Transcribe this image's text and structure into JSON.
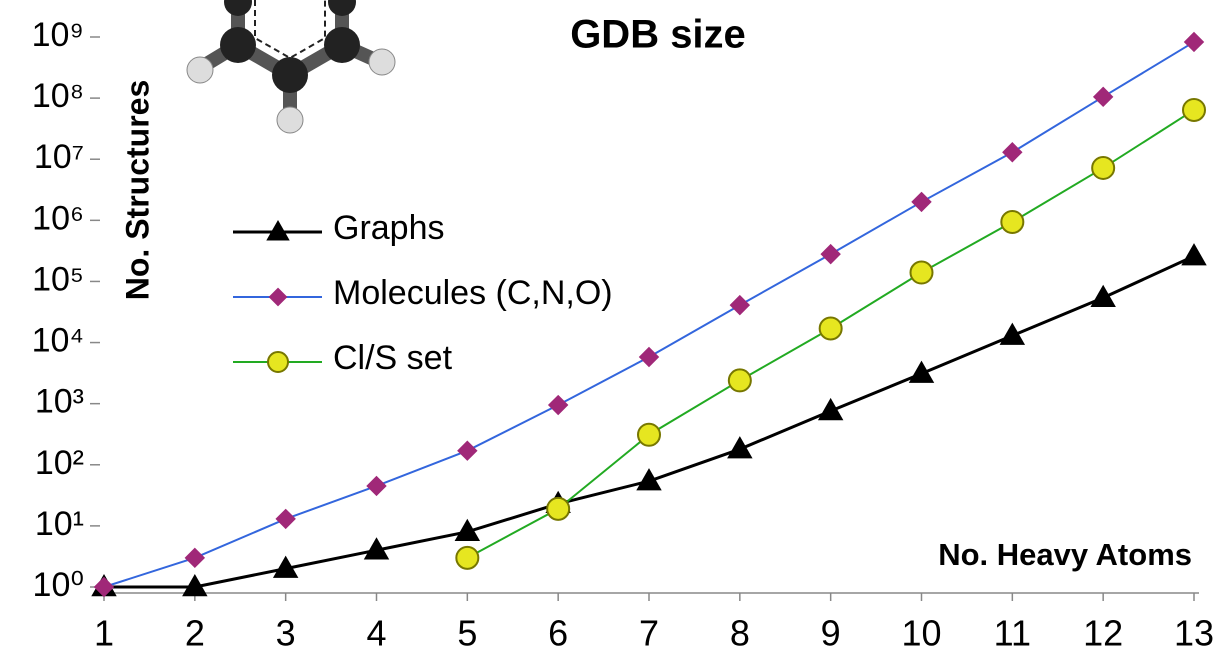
{
  "chart_data": {
    "type": "line",
    "title": "GDB size",
    "ylabel": "No. Structures",
    "xlabel": "No. Heavy Atoms",
    "x": [
      1,
      2,
      3,
      4,
      5,
      6,
      7,
      8,
      9,
      10,
      11,
      12,
      13
    ],
    "xlim": [
      1,
      13
    ],
    "xticks": [
      1,
      2,
      3,
      4,
      5,
      6,
      7,
      8,
      9,
      10,
      11,
      12,
      13
    ],
    "ylim": [
      1,
      1000000000
    ],
    "ylog": true,
    "yticks": [
      {
        "value": 1,
        "label": "10⁰"
      },
      {
        "value": 10,
        "label": "10¹"
      },
      {
        "value": 100,
        "label": "10²"
      },
      {
        "value": 1000,
        "label": "10³"
      },
      {
        "value": 10000,
        "label": "10⁴"
      },
      {
        "value": 100000,
        "label": "10⁵"
      },
      {
        "value": 1000000,
        "label": "10⁶"
      },
      {
        "value": 10000000,
        "label": "10⁷"
      },
      {
        "value": 100000000,
        "label": "10⁸"
      },
      {
        "value": 1000000000,
        "label": "10⁹"
      }
    ],
    "legend": "upper left",
    "series": [
      {
        "name": "Graphs",
        "color": "#000000",
        "marker": "triangle",
        "marker_fill": "#000000",
        "values": [
          1,
          1,
          2,
          4,
          8,
          23,
          54,
          180,
          760,
          3100,
          13000,
          54000,
          260000
        ]
      },
      {
        "name": "Molecules (C,N,O)",
        "color": "#3366dd",
        "marker": "diamond",
        "marker_fill": "#a02878",
        "values": [
          1,
          3,
          13,
          45,
          170,
          950,
          5800,
          41000,
          280000,
          2000000,
          13000000,
          105000000,
          830000000
        ]
      },
      {
        "name": "Cl/S set",
        "color": "#22aa22",
        "marker": "circle",
        "marker_fill": "#e6e620",
        "values": [
          null,
          null,
          null,
          null,
          3,
          19,
          310,
          2400,
          17000,
          140000,
          940000,
          7200000,
          64000000
        ]
      }
    ]
  }
}
